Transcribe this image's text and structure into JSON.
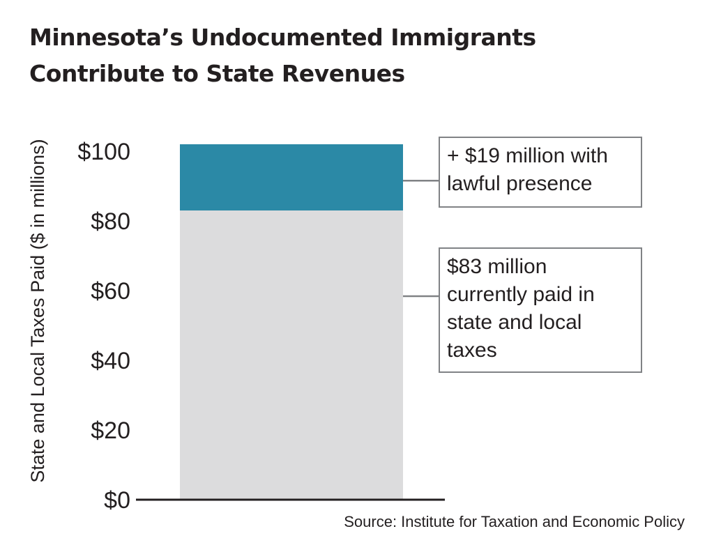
{
  "title_lines": [
    "Minnesota’s Undocumented Immigrants",
    "Contribute to State Revenues"
  ],
  "source": "Source: Institute for Taxation and Economic Policy",
  "colors": {
    "base_segment": "#dcdcdd",
    "added_segment": "#2b89a6",
    "axis_line": "#231f20",
    "connector": "#808285"
  },
  "chart_data": {
    "type": "bar",
    "stacked": true,
    "ylabel": "State and Local Taxes Paid ($ in millions)",
    "ylim": [
      0,
      100
    ],
    "yticks": [
      {
        "value": 0,
        "label": "$0"
      },
      {
        "value": 20,
        "label": "$20"
      },
      {
        "value": 40,
        "label": "$40"
      },
      {
        "value": 60,
        "label": "$60"
      },
      {
        "value": 80,
        "label": "$80"
      },
      {
        "value": 100,
        "label": "$100"
      }
    ],
    "grid": false,
    "series": [
      {
        "value": 83,
        "color": "#dcdcdd"
      },
      {
        "value": 19,
        "color": "#2b89a6"
      }
    ],
    "annotations": [
      {
        "lines": [
          "+ $19 million with",
          "lawful presence"
        ]
      },
      {
        "lines": [
          "$83 million",
          "currently paid in",
          "state and local",
          "taxes"
        ]
      }
    ]
  }
}
